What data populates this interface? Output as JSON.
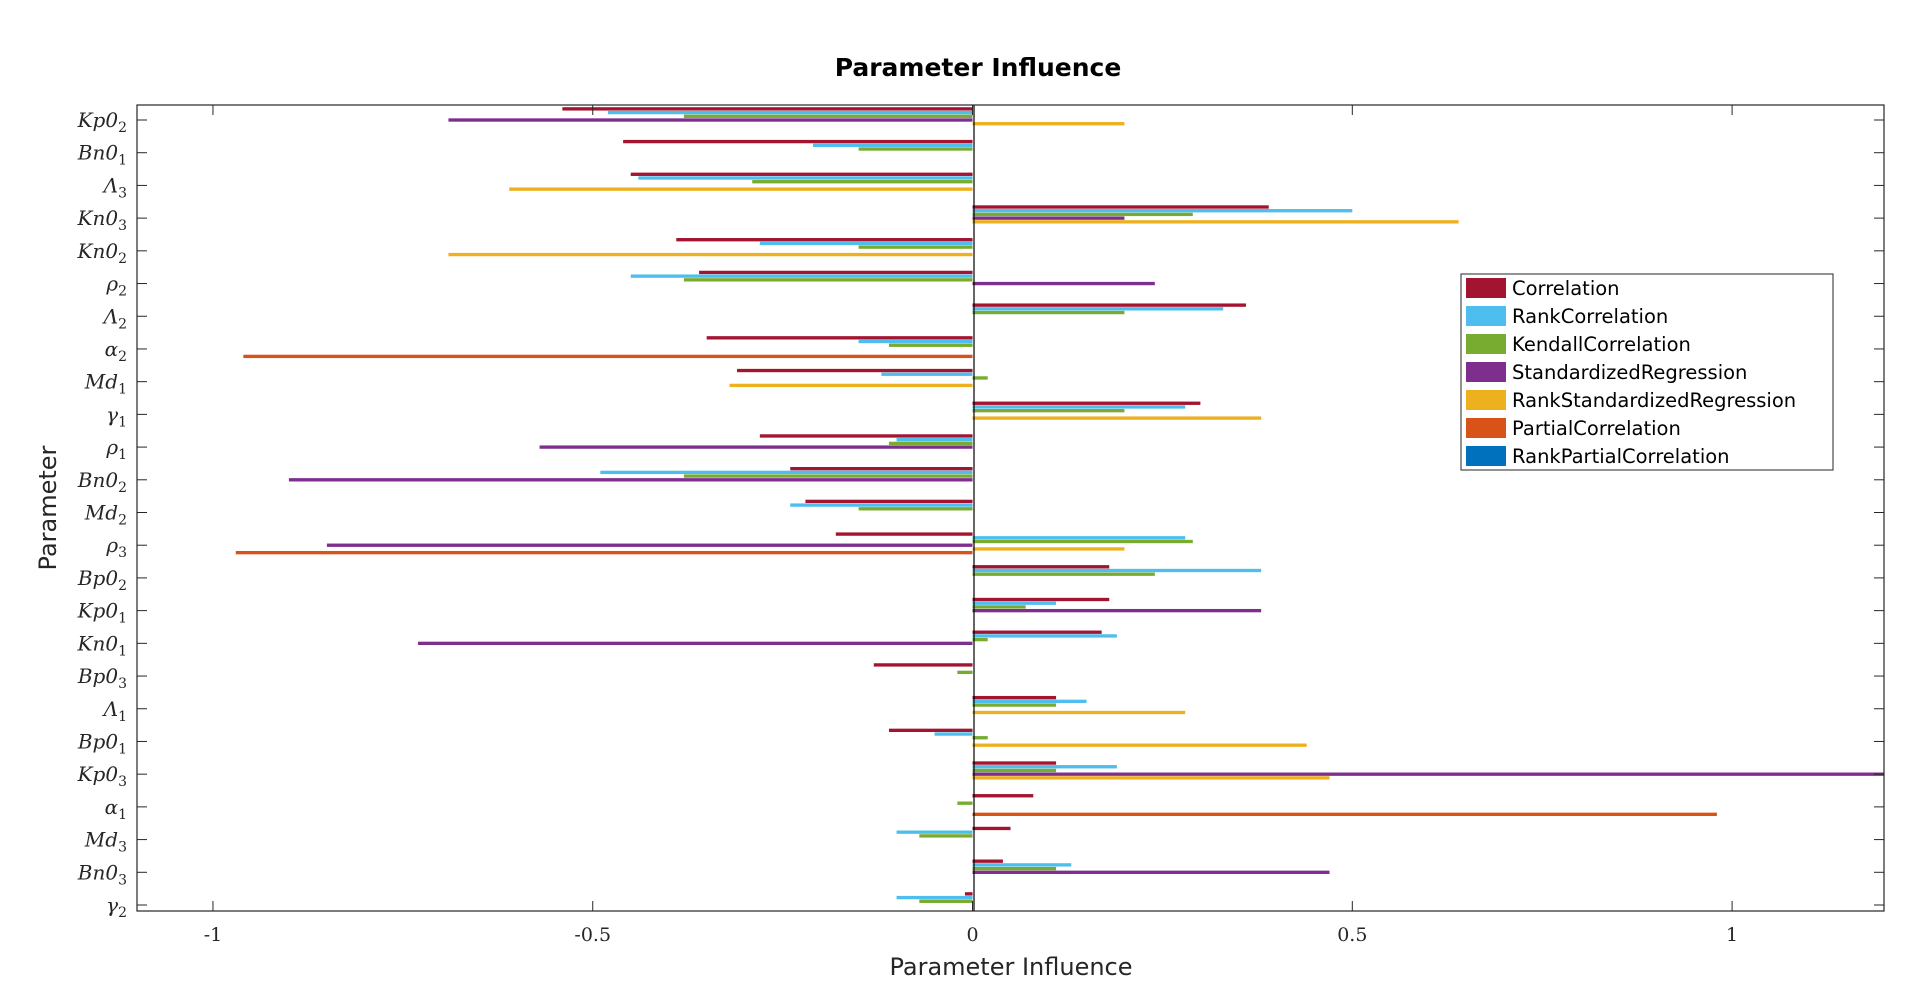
{
  "chart_data": {
    "type": "bar",
    "orientation": "horizontal",
    "title": "Parameter Influence",
    "xlabel": "Parameter Influence",
    "ylabel": "Parameter",
    "xlim": [
      -1.1,
      1.2
    ],
    "xticks": [
      -1,
      -0.5,
      0,
      0.5,
      1
    ],
    "xtick_labels": [
      "-1",
      "-0.5",
      "0",
      "0.5",
      "1"
    ],
    "grid": false,
    "legend_position": "right",
    "categories": [
      {
        "base": "Kp0",
        "sub": "2"
      },
      {
        "base": "Bn0",
        "sub": "1"
      },
      {
        "base": "Λ",
        "sub": "3"
      },
      {
        "base": "Kn0",
        "sub": "3"
      },
      {
        "base": "Kn0",
        "sub": "2"
      },
      {
        "base": "ρ",
        "sub": "2"
      },
      {
        "base": "Λ",
        "sub": "2"
      },
      {
        "base": "α",
        "sub": "2"
      },
      {
        "base": "Md",
        "sub": "1"
      },
      {
        "base": "γ",
        "sub": "1"
      },
      {
        "base": "ρ",
        "sub": "1"
      },
      {
        "base": "Bn0",
        "sub": "2"
      },
      {
        "base": "Md",
        "sub": "2"
      },
      {
        "base": "ρ",
        "sub": "3"
      },
      {
        "base": "Bp0",
        "sub": "2"
      },
      {
        "base": "Kp0",
        "sub": "1"
      },
      {
        "base": "Kn0",
        "sub": "1"
      },
      {
        "base": "Bp0",
        "sub": "3"
      },
      {
        "base": "Λ",
        "sub": "1"
      },
      {
        "base": "Bp0",
        "sub": "1"
      },
      {
        "base": "Kp0",
        "sub": "3"
      },
      {
        "base": "α",
        "sub": "1"
      },
      {
        "base": "Md",
        "sub": "3"
      },
      {
        "base": "Bn0",
        "sub": "3"
      },
      {
        "base": "γ",
        "sub": "2"
      }
    ],
    "series": [
      {
        "name": "Correlation",
        "color": "#A2142F",
        "values": [
          -0.54,
          -0.46,
          -0.45,
          0.39,
          -0.39,
          -0.36,
          0.36,
          -0.35,
          -0.31,
          0.3,
          -0.28,
          -0.24,
          -0.22,
          -0.18,
          0.18,
          0.18,
          0.17,
          -0.13,
          0.11,
          -0.11,
          0.11,
          0.08,
          0.05,
          0.04,
          -0.01
        ]
      },
      {
        "name": "RankCorrelation",
        "color": "#4DBEEE",
        "values": [
          -0.48,
          -0.21,
          -0.44,
          0.5,
          -0.28,
          -0.45,
          0.33,
          -0.15,
          -0.12,
          0.28,
          -0.1,
          -0.49,
          -0.24,
          0.28,
          0.38,
          0.11,
          0.19,
          0.0,
          0.15,
          -0.05,
          0.19,
          0.0,
          -0.1,
          0.13,
          -0.1
        ]
      },
      {
        "name": "KendallCorrelation",
        "color": "#77AC30",
        "values": [
          -0.38,
          -0.15,
          -0.29,
          0.29,
          -0.15,
          -0.38,
          0.2,
          -0.11,
          0.02,
          0.2,
          -0.11,
          -0.38,
          -0.15,
          0.29,
          0.24,
          0.07,
          0.02,
          -0.02,
          0.11,
          0.02,
          0.11,
          -0.02,
          -0.07,
          0.11,
          -0.07
        ]
      },
      {
        "name": "StandardizedRegression",
        "color": "#7E2F8E",
        "values": [
          -0.69,
          0.0,
          0.0,
          0.2,
          0.0,
          0.24,
          0.0,
          0.0,
          0.0,
          0.0,
          -0.57,
          -0.9,
          0.0,
          -0.85,
          0.0,
          0.38,
          -0.73,
          0.0,
          0.0,
          0.0,
          1.25,
          0.0,
          0.0,
          0.47,
          0.0
        ]
      },
      {
        "name": "RankStandardizedRegression",
        "color": "#EDB120",
        "values": [
          0.2,
          0.0,
          -0.61,
          0.64,
          -0.69,
          0.0,
          0.0,
          0.0,
          -0.32,
          0.38,
          0.0,
          0.0,
          0.0,
          0.2,
          0.0,
          0.0,
          0.0,
          0.0,
          0.28,
          0.44,
          0.47,
          0.0,
          0.0,
          0.0,
          0.0
        ]
      },
      {
        "name": "PartialCorrelation",
        "color": "#D95319",
        "values": [
          0.0,
          0.0,
          0.0,
          0.0,
          0.0,
          0.0,
          0.0,
          -0.96,
          0.0,
          0.0,
          0.0,
          0.0,
          0.0,
          -0.97,
          0.0,
          0.0,
          0.0,
          0.0,
          0.0,
          0.0,
          0.0,
          0.98,
          0.0,
          0.0,
          0.0
        ]
      },
      {
        "name": "RankPartialCorrelation",
        "color": "#0072BD",
        "values": [
          0.0,
          0.0,
          0.0,
          0.0,
          0.0,
          0.0,
          0.0,
          0.0,
          0.0,
          0.0,
          0.0,
          0.0,
          0.0,
          0.0,
          0.0,
          0.0,
          0.0,
          0.0,
          0.0,
          0.0,
          0.0,
          0.0,
          0.0,
          0.0,
          0.0
        ]
      }
    ]
  }
}
